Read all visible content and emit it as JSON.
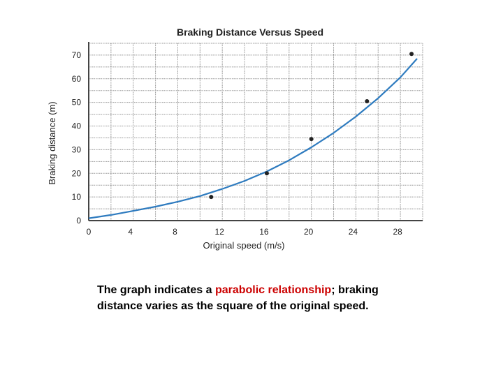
{
  "chart_data": {
    "type": "line",
    "title": "Braking Distance Versus Speed",
    "xlabel": "Original speed (m/s)",
    "ylabel": "Braking distance (m)",
    "xlim": [
      0,
      30
    ],
    "ylim": [
      0,
      75
    ],
    "xticks": [
      "0",
      "4",
      "8",
      "12",
      "16",
      "20",
      "24",
      "28"
    ],
    "yticks": [
      "0",
      "10",
      "20",
      "30",
      "40",
      "50",
      "60",
      "70"
    ],
    "grid": true,
    "series": [
      {
        "kind": "scatter",
        "x": [
          11,
          16,
          20,
          25,
          29
        ],
        "y": [
          10,
          20,
          34.5,
          50.5,
          70.5
        ]
      },
      {
        "kind": "fit-curve",
        "x": [
          0,
          2,
          4,
          6,
          8,
          10,
          12,
          14,
          16,
          18,
          20,
          22,
          24,
          26,
          28,
          29.5
        ],
        "y": [
          1,
          2.4,
          4.1,
          5.9,
          8.0,
          10.4,
          13.4,
          16.8,
          20.8,
          25.5,
          31.0,
          37.1,
          44.0,
          51.8,
          60.6,
          68.5
        ]
      }
    ],
    "line_color": "#2e7bbf",
    "point_color": "#222222"
  },
  "caption": {
    "before": "The graph indicates a ",
    "highlight": "parabolic relationship",
    "after": "; braking distance varies as the square of the original speed.",
    "highlight_color": "#cc0000"
  }
}
